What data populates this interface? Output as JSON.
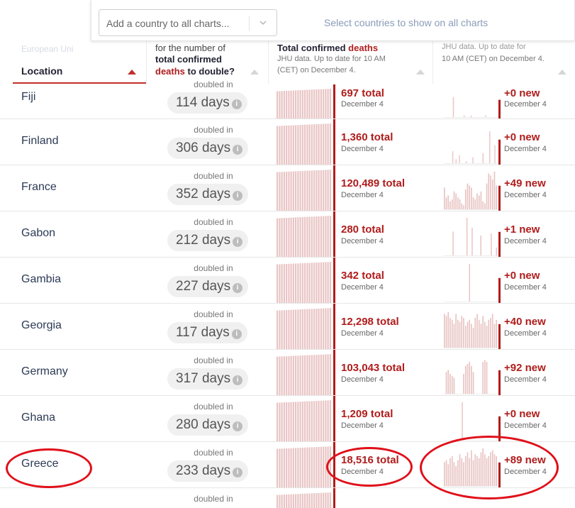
{
  "search": {
    "placeholder": "Add a country to all charts..."
  },
  "hint": "Select countries to show on all charts",
  "header": {
    "location_ghost": "European Uni",
    "location_title": "Location",
    "doubling": {
      "line1": "for the number of",
      "line2": "total confirmed",
      "line3_red": "deaths",
      "line3_rest": "to double?"
    },
    "total": {
      "line1_dark": "Total confirmed",
      "line1_red": "deaths",
      "line2": "JHU data. Up to date for 10 AM",
      "line3": "(CET) on December 4."
    },
    "newcol": {
      "line1": "JHU data. Up to date for",
      "line2": "10 AM (CET) on December 4."
    }
  },
  "first_row_label": "doubled in",
  "rows": [
    {
      "location": "Fiji",
      "doubled_label": "doubled in",
      "days": "114 days",
      "total": "697 total",
      "total_date": "December 4",
      "new": "+0 new",
      "new_date": "December 4",
      "new_bars": [
        0,
        0,
        0,
        0,
        0,
        70,
        0,
        0,
        0,
        0,
        0,
        6,
        0,
        0,
        0,
        4,
        0,
        0,
        0,
        0,
        0,
        0,
        0,
        6,
        0,
        0,
        0,
        0,
        0,
        0
      ]
    },
    {
      "location": "Finland",
      "doubled_label": "doubled in",
      "days": "306 days",
      "total": "1,360 total",
      "total_date": "December 4",
      "new": "+0 new",
      "new_date": "December 4",
      "new_bars": [
        0,
        0,
        0,
        0,
        0,
        30,
        0,
        10,
        0,
        20,
        0,
        0,
        0,
        5,
        0,
        0,
        0,
        15,
        0,
        0,
        0,
        0,
        0,
        25,
        0,
        0,
        0,
        80,
        0,
        0,
        45,
        0
      ]
    },
    {
      "location": "France",
      "doubled_label": "doubled in",
      "days": "352 days",
      "total": "120,489 total",
      "total_date": "December 4",
      "new": "+49 new",
      "new_date": "December 4",
      "new_bars": [
        55,
        30,
        35,
        20,
        25,
        45,
        40,
        30,
        25,
        15,
        10,
        50,
        65,
        60,
        55,
        30,
        25,
        40,
        35,
        45,
        20,
        15,
        65,
        90,
        85,
        75,
        95,
        60
      ]
    },
    {
      "location": "Gabon",
      "doubled_label": "doubled in",
      "days": "212 days",
      "total": "280 total",
      "total_date": "December 4",
      "new": "+1 new",
      "new_date": "December 4",
      "new_bars": [
        0,
        0,
        0,
        0,
        0,
        60,
        0,
        0,
        0,
        0,
        0,
        0,
        0,
        95,
        0,
        0,
        70,
        0,
        0,
        0,
        0,
        50,
        0,
        0,
        0,
        0,
        0,
        55,
        0,
        0,
        20
      ]
    },
    {
      "location": "Gambia",
      "doubled_label": "doubled in",
      "days": "227 days",
      "total": "342 total",
      "total_date": "December 4",
      "new": "+0 new",
      "new_date": "December 4",
      "new_bars": [
        0,
        0,
        0,
        0,
        0,
        0,
        0,
        0,
        0,
        0,
        0,
        0,
        0,
        0,
        95,
        0,
        0,
        0,
        0,
        0,
        0,
        0,
        0,
        0,
        0,
        0,
        0,
        0,
        0,
        0
      ]
    },
    {
      "location": "Georgia",
      "doubled_label": "doubled in",
      "days": "117 days",
      "total": "12,298 total",
      "total_date": "December 4",
      "new": "+40 new",
      "new_date": "December 4",
      "new_bars": [
        85,
        80,
        90,
        75,
        70,
        60,
        85,
        70,
        65,
        80,
        75,
        55,
        65,
        70,
        60,
        50,
        75,
        85,
        70,
        60,
        80,
        65,
        55,
        70,
        75,
        85,
        60,
        70
      ]
    },
    {
      "location": "Germany",
      "doubled_label": "doubled in",
      "days": "317 days",
      "total": "103,043 total",
      "total_date": "December 4",
      "new": "+92 new",
      "new_date": "December 4",
      "new_bars": [
        0,
        55,
        60,
        50,
        45,
        40,
        0,
        0,
        0,
        0,
        50,
        70,
        75,
        80,
        70,
        55,
        0,
        0,
        0,
        0,
        80,
        85,
        80,
        0,
        0,
        0,
        0,
        0
      ]
    },
    {
      "location": "Ghana",
      "doubled_label": "doubled in",
      "days": "280 days",
      "total": "1,209 total",
      "total_date": "December 4",
      "new": "+0 new",
      "new_date": "December 4",
      "new_bars": [
        0,
        0,
        0,
        0,
        0,
        0,
        0,
        0,
        0,
        0,
        95,
        0,
        0,
        0,
        0,
        0,
        0,
        0,
        0,
        0,
        0,
        0,
        0,
        0,
        0,
        0,
        0,
        0,
        0,
        0
      ]
    },
    {
      "location": "Greece",
      "doubled_label": "doubled in",
      "days": "233 days",
      "total": "18,516 total",
      "total_date": "December 4",
      "new": "+89 new",
      "new_date": "December 4",
      "new_bars": [
        60,
        65,
        55,
        70,
        75,
        60,
        50,
        65,
        80,
        70,
        60,
        75,
        85,
        70,
        90,
        65,
        80,
        75,
        70,
        85,
        95,
        80,
        70,
        75,
        85,
        90,
        80,
        75
      ]
    }
  ],
  "next_row_label": "doubled in",
  "colors": {
    "accent": "#b01c1c",
    "bar": "#e9c4c4",
    "highlight": "#e0101a"
  }
}
